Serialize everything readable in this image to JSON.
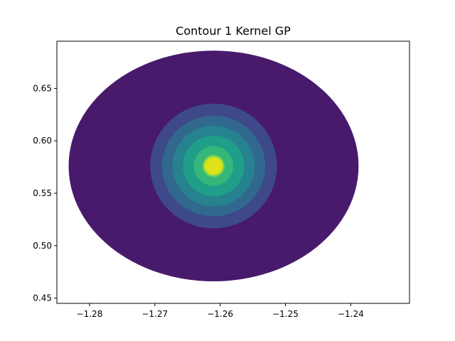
{
  "chart_data": {
    "type": "contour",
    "title": "Contour 1 Kernel GP",
    "xlabel": "",
    "ylabel": "",
    "xlim": [
      -1.285,
      -1.231
    ],
    "ylim": [
      0.445,
      0.695
    ],
    "center": {
      "x": -1.261,
      "y": 0.576
    },
    "grid": false,
    "x_ticks": [
      {
        "value": -1.28,
        "label": "−1.28"
      },
      {
        "value": -1.27,
        "label": "−1.27"
      },
      {
        "value": -1.26,
        "label": "−1.26"
      },
      {
        "value": -1.25,
        "label": "−1.25"
      },
      {
        "value": -1.24,
        "label": "−1.24"
      }
    ],
    "y_ticks": [
      {
        "value": 0.45,
        "label": "0.45"
      },
      {
        "value": 0.5,
        "label": "0.50"
      },
      {
        "value": 0.55,
        "label": "0.55"
      },
      {
        "value": 0.6,
        "label": "0.60"
      },
      {
        "value": 0.65,
        "label": "0.65"
      }
    ],
    "levels": [
      {
        "name": "level-0",
        "rx": 0.0222,
        "ry": 0.11,
        "color": "#481a6c"
      },
      {
        "name": "level-1",
        "rx": 0.0097,
        "ry": 0.0595,
        "color": "#3e4989"
      },
      {
        "name": "level-2",
        "rx": 0.0079,
        "ry": 0.048,
        "color": "#31688e"
      },
      {
        "name": "level-3",
        "rx": 0.0063,
        "ry": 0.0385,
        "color": "#26828e"
      },
      {
        "name": "level-4",
        "rx": 0.0047,
        "ry": 0.029,
        "color": "#1f9e89"
      },
      {
        "name": "level-5",
        "rx": 0.003,
        "ry": 0.019,
        "color": "#35b779"
      },
      {
        "name": "level-6",
        "rx": 0.0017,
        "ry": 0.0107,
        "color": "#6ece58"
      },
      {
        "name": "level-7",
        "rx": 0.0015,
        "ry": 0.009,
        "color": "#b5de2b"
      },
      {
        "name": "level-8",
        "rx": 0.0013,
        "ry": 0.008,
        "color": "#dde318"
      }
    ]
  }
}
